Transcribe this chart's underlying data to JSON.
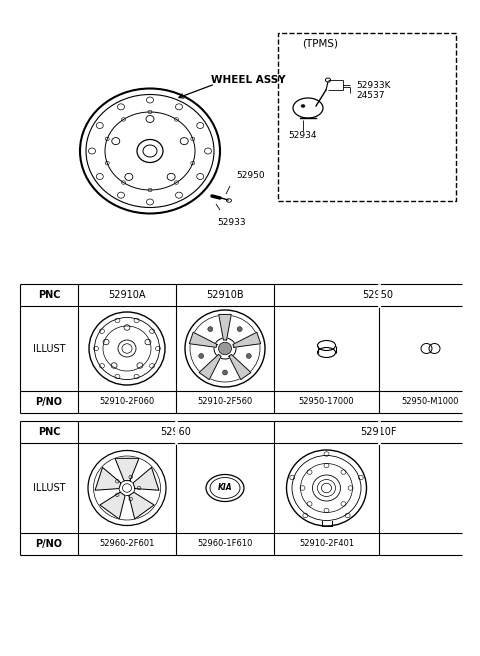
{
  "bg_color": "#ffffff",
  "wheel_assy_label": "WHEEL ASSY",
  "tpms_label": "(TPMS)",
  "table1_pnc": [
    "PNC",
    "52910A",
    "52910B",
    "52950"
  ],
  "table1_pno": [
    "P/NO",
    "52910-2F060",
    "52910-2F560",
    "52950-17000",
    "52950-M1000"
  ],
  "table2_pnc": [
    "PNC",
    "52960",
    "52910F"
  ],
  "table2_pno": [
    "P/NO",
    "52960-2F601",
    "52960-1F610",
    "52910-2F401"
  ],
  "fig_w": 4.8,
  "fig_h": 6.56,
  "dpi": 100
}
